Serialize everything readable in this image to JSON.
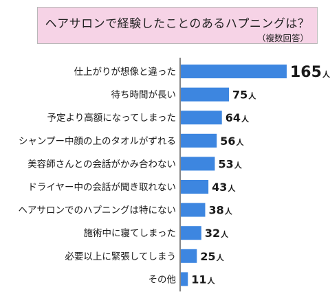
{
  "header": {
    "title": "ヘアサロンで経験したことのあるハプニングは？",
    "subtitle": "（複数回答）"
  },
  "chart_data": {
    "type": "bar",
    "orientation": "horizontal",
    "categories": [
      "仕上がりが想像と違った",
      "待ち時間が長い",
      "予定より高額になってしまった",
      "シャンプー中顔の上のタオルがずれる",
      "美容師さんとの会話がかみ合わない",
      "ドライヤー中の会話が聞き取れない",
      "ヘアサロンでのハプニングは特にない",
      "施術中に寝てしまった",
      "必要以上に緊張してしまう",
      "その他"
    ],
    "values": [
      165,
      75,
      64,
      56,
      53,
      43,
      38,
      32,
      25,
      11
    ],
    "unit": "人",
    "bar_color": "#3d86e0",
    "axis_color": "#333333"
  }
}
